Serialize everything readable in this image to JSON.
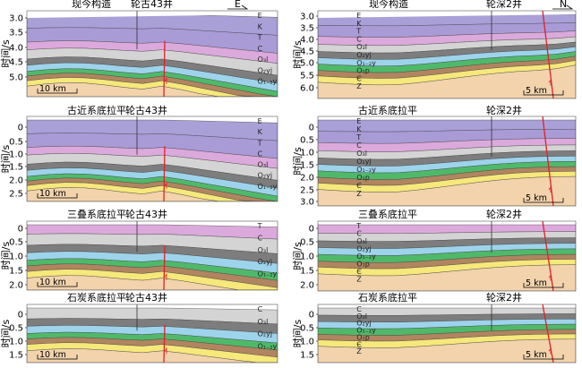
{
  "panels": [
    {
      "title": "现今构造",
      "well": "轮古43井",
      "dir": "E",
      "yaxis": "时间/s",
      "ticks": [
        "3.0",
        "3.5",
        "4.0",
        "4.5",
        "5.0"
      ],
      "scale": "10 km",
      "units": [
        "E",
        "K",
        "T",
        "C",
        "O₃l",
        "O₂yj",
        "O₁₋₂y"
      ]
    },
    {
      "title": "现今构造",
      "well": "轮深2井",
      "dir": "N",
      "yaxis": "时间/s",
      "ticks": [
        "3.0",
        "3.5",
        "4.0",
        "4.5",
        "5.0",
        "5.5",
        "6.0"
      ],
      "scale": "5 km",
      "units": [
        "E",
        "K",
        "T",
        "C",
        "O₃l",
        "O₂yj",
        "O₁₋₂y",
        "O₁p",
        "Є",
        "Z"
      ]
    },
    {
      "title": "古近系底拉平",
      "well": "轮古43井",
      "yaxis": "时间/s",
      "ticks": [
        "0",
        "0.5",
        "1.0",
        "1.5",
        "2.0",
        "2.5"
      ],
      "scale": "10 km",
      "units": [
        "E",
        "K",
        "T",
        "C",
        "O₃l",
        "O₂yj",
        "O₁₋₂y"
      ]
    },
    {
      "title": "古近系底拉平",
      "well": "轮深2井",
      "yaxis": "时间/s",
      "ticks": [
        "0",
        "0.5",
        "1.0",
        "1.5",
        "2.0",
        "2.5",
        "3.0"
      ],
      "scale": "5 km",
      "units": [
        "E",
        "K",
        "T",
        "C",
        "O₃l",
        "O₂yj",
        "O₁₋₂y",
        "O₁p",
        "Є",
        "Z"
      ]
    },
    {
      "title": "三叠系底拉平",
      "well": "轮古43井",
      "yaxis": "时间/s",
      "ticks": [
        "0",
        "0.5",
        "1.0",
        "1.5",
        "2.0"
      ],
      "scale": "10 km",
      "units": [
        "T",
        "C",
        "O₃l",
        "O₂yj",
        "O₁₋₂y"
      ]
    },
    {
      "title": "三叠系底拉平",
      "well": "轮深2井",
      "yaxis": "时间/s",
      "ticks": [
        "0",
        "0.5",
        "1.0",
        "1.5",
        "2.0"
      ],
      "scale": "5 km",
      "units": [
        "T",
        "C",
        "O₃l",
        "O₂yj",
        "O₁₋₂y",
        "O₁p",
        "Є",
        "Z"
      ]
    },
    {
      "title": "石炭系底拉平",
      "well": "轮古43井",
      "yaxis": "时间/s",
      "ticks": [
        "0",
        "0.5",
        "1.0",
        "1.5"
      ],
      "scale": "10 km",
      "units": [
        "C",
        "O₃l",
        "O₂yj",
        "O₁₋₂y"
      ]
    },
    {
      "title": "石炭系底拉平",
      "well": "轮深2井",
      "yaxis": "时间/s",
      "ticks": [
        "0",
        "0.5",
        "1.0",
        "1.5"
      ],
      "scale": "5 km",
      "units": [
        "C",
        "O₃l",
        "O₂yj",
        "O₁₋₂y",
        "O₁p",
        "Є",
        "Z"
      ]
    }
  ],
  "colors": {
    "E": "#a9a0d8",
    "K": "#a99bd6",
    "T": "#dca9dc",
    "C": "#d4d4d4",
    "O3l": "#7d7d7d",
    "O2yj": "#9ed3ec",
    "O12y": "#4fb96a",
    "O1p": "#b08560",
    "Cm": "#f6e87a",
    "Z": "#f2d3ac",
    "fault": "#e0202a"
  }
}
